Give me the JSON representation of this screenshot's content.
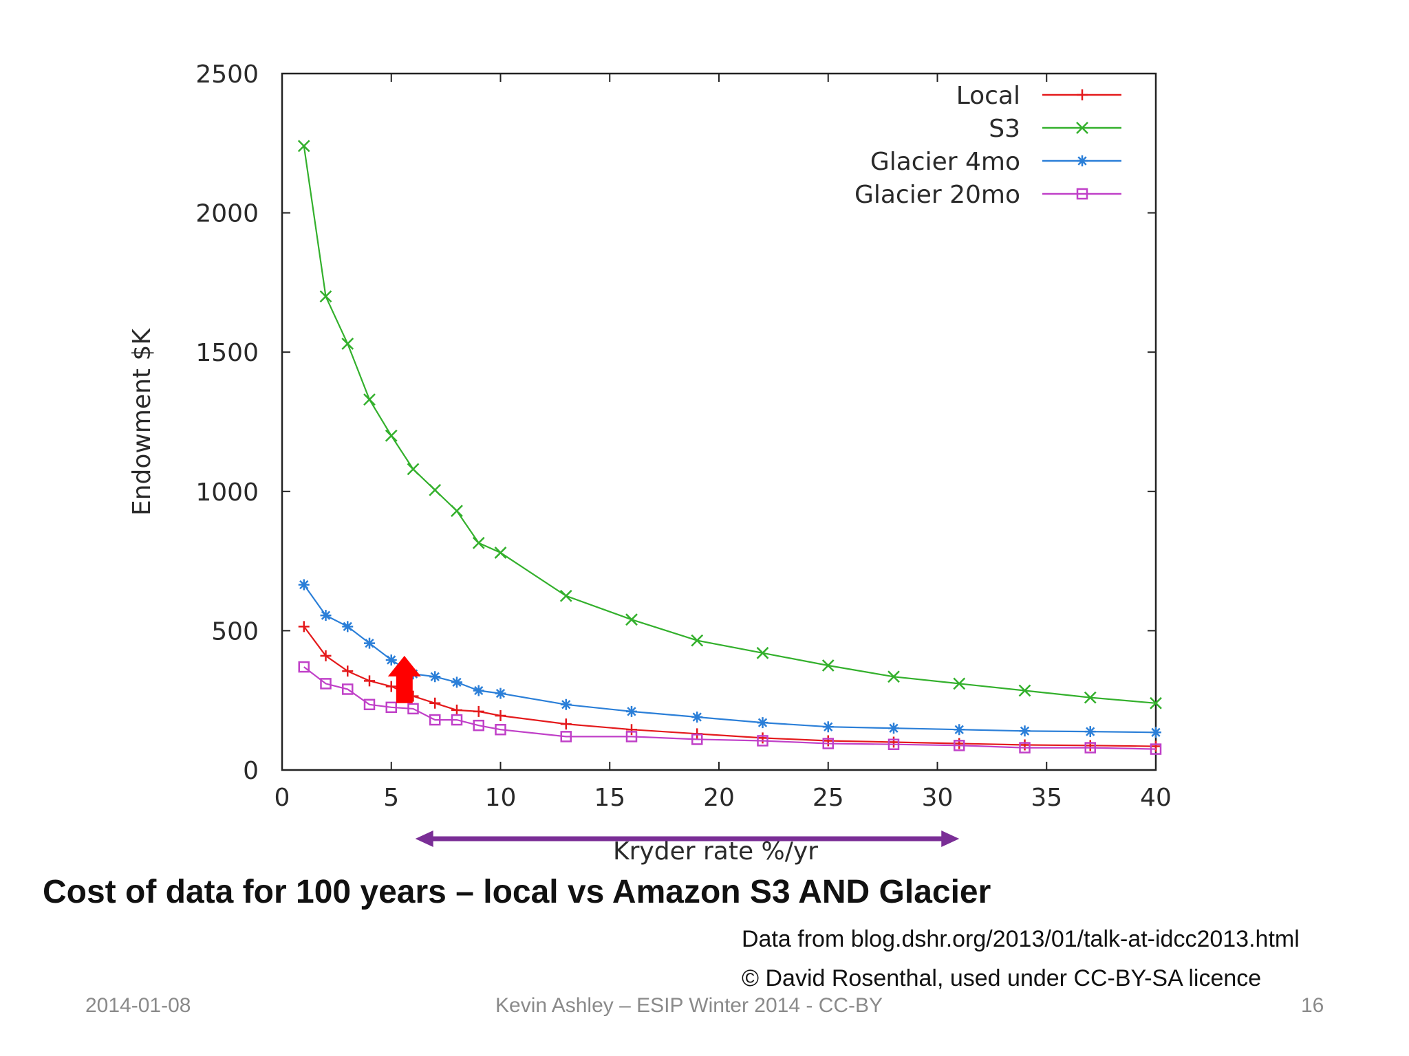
{
  "slide": {
    "title": "Cost of data for 100 years – local vs Amazon S3 AND Glacier",
    "source_credit": "Data from blog.dshr.org/2013/01/talk-at-idcc2013.html",
    "copyright_credit": "© David Rosenthal, used under CC-BY-SA licence",
    "footer_date": "2014-01-08",
    "footer_center": "Kevin Ashley – ESIP Winter 2014 -  CC-BY",
    "page_number": "16"
  },
  "chart_data": {
    "type": "line",
    "title": "",
    "xlabel": "Kryder rate %/yr",
    "ylabel": "Endowment $K",
    "xlim": [
      0,
      40
    ],
    "ylim": [
      0,
      2500
    ],
    "xticks": [
      "0",
      "5",
      "10",
      "15",
      "20",
      "25",
      "30",
      "35",
      "40"
    ],
    "yticks": [
      "0",
      "500",
      "1000",
      "1500",
      "2000",
      "2500"
    ],
    "legend_position": "top-right",
    "grid": false,
    "series": [
      {
        "name": "Local",
        "color": "#e41a1c",
        "marker": "plus",
        "x": [
          1,
          2,
          3,
          4,
          5,
          6,
          7,
          8,
          9,
          10,
          13,
          16,
          19,
          22,
          25,
          28,
          31,
          34,
          37,
          40
        ],
        "y": [
          515,
          410,
          355,
          320,
          300,
          265,
          240,
          215,
          210,
          195,
          165,
          145,
          130,
          115,
          105,
          100,
          95,
          90,
          88,
          85
        ]
      },
      {
        "name": "S3",
        "color": "#33b02c",
        "marker": "x",
        "x": [
          1,
          2,
          3,
          4,
          5,
          6,
          7,
          8,
          9,
          10,
          13,
          16,
          19,
          22,
          25,
          28,
          31,
          34,
          37,
          40
        ],
        "y": [
          2240,
          1700,
          1530,
          1330,
          1200,
          1080,
          1005,
          930,
          815,
          780,
          625,
          540,
          465,
          420,
          375,
          335,
          310,
          285,
          260,
          240
        ]
      },
      {
        "name": "Glacier 4mo",
        "color": "#2b7fd8",
        "marker": "star",
        "x": [
          1,
          2,
          3,
          4,
          5,
          6,
          7,
          8,
          9,
          10,
          13,
          16,
          19,
          22,
          25,
          28,
          31,
          34,
          37,
          40
        ],
        "y": [
          665,
          555,
          515,
          455,
          395,
          345,
          335,
          315,
          285,
          275,
          235,
          210,
          190,
          170,
          155,
          150,
          145,
          140,
          138,
          135
        ]
      },
      {
        "name": "Glacier 20mo",
        "color": "#c040c8",
        "marker": "square",
        "x": [
          1,
          2,
          3,
          4,
          5,
          6,
          7,
          8,
          9,
          10,
          13,
          16,
          19,
          22,
          25,
          28,
          31,
          34,
          37,
          40
        ],
        "y": [
          370,
          310,
          290,
          235,
          225,
          220,
          180,
          180,
          160,
          145,
          120,
          120,
          110,
          105,
          95,
          92,
          88,
          80,
          80,
          75
        ]
      }
    ],
    "annotations": {
      "up_arrow": {
        "x": 5.6,
        "y_from": 240,
        "y_to": 410,
        "color": "#ff0000"
      },
      "range_arrow": {
        "x_from": 6.1,
        "x_to": 31.0,
        "color": "#7a2e96"
      }
    }
  }
}
